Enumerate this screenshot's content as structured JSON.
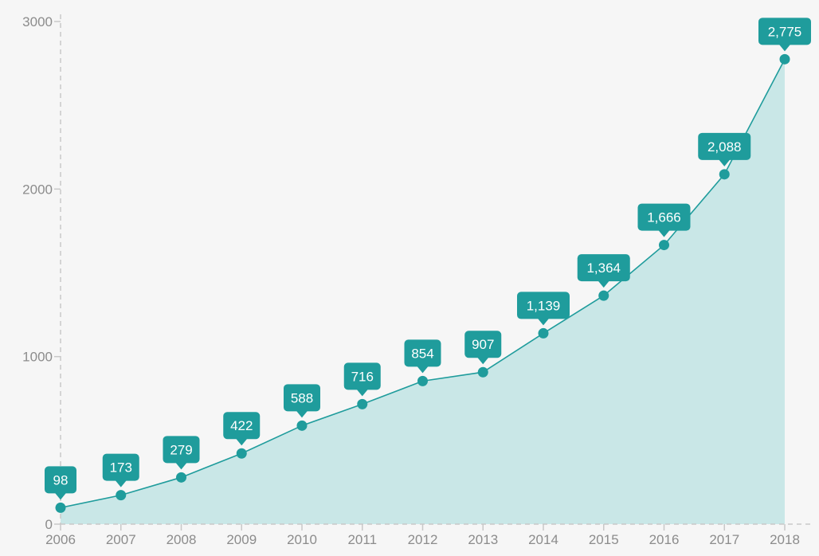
{
  "chart_data": {
    "type": "area",
    "x": [
      "2006",
      "2007",
      "2008",
      "2009",
      "2010",
      "2011",
      "2012",
      "2013",
      "2014",
      "2015",
      "2016",
      "2017",
      "2018"
    ],
    "values": [
      98,
      173,
      279,
      422,
      588,
      716,
      854,
      907,
      1139,
      1364,
      1666,
      2088,
      2775
    ],
    "data_labels": [
      "98",
      "173",
      "279",
      "422",
      "588",
      "716",
      "854",
      "907",
      "1,139",
      "1,364",
      "1,666",
      "2,088",
      "2,775"
    ],
    "y_ticks": [
      "0",
      "1000",
      "2000",
      "3000"
    ],
    "ylim": [
      0,
      3000
    ],
    "title": "",
    "xlabel": "",
    "ylabel": "",
    "grid": false,
    "legend": "none",
    "colors": {
      "line": "#1f9c9c",
      "fill": "#c9e7e7",
      "marker": "#1f9c9c",
      "callout": "#1f9c9c",
      "axis": "#c8c8c8",
      "tick_text": "#8c8c8c",
      "background": "#f6f6f6"
    }
  }
}
